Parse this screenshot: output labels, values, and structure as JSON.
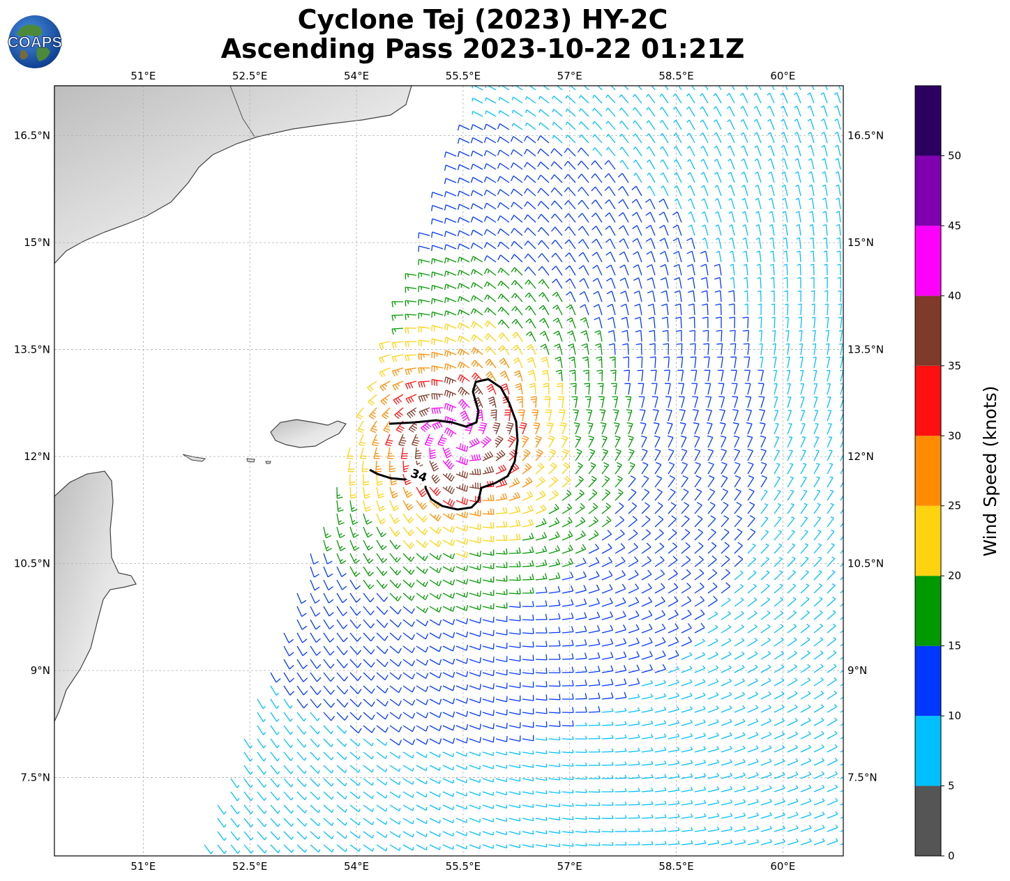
{
  "logo": {
    "text": "COAPS"
  },
  "title": {
    "line1": "Cyclone Tej (2023) HY-2C",
    "line2": "Ascending Pass 2023-10-22 01:21Z"
  },
  "map": {
    "lon_range": [
      49.75,
      60.85
    ],
    "lat_range": [
      6.4,
      17.2
    ],
    "lon_ticks": [
      {
        "value": 51.0,
        "label": "51°E"
      },
      {
        "value": 52.5,
        "label": "52.5°E"
      },
      {
        "value": 54.0,
        "label": "54°E"
      },
      {
        "value": 55.5,
        "label": "55.5°E"
      },
      {
        "value": 57.0,
        "label": "57°E"
      },
      {
        "value": 58.5,
        "label": "58.5°E"
      },
      {
        "value": 60.0,
        "label": "60°E"
      }
    ],
    "lat_ticks": [
      {
        "value": 16.5,
        "label": "16.5°N"
      },
      {
        "value": 15.0,
        "label": "15°N"
      },
      {
        "value": 13.5,
        "label": "13.5°N"
      },
      {
        "value": 12.0,
        "label": "12°N"
      },
      {
        "value": 10.5,
        "label": "10.5°N"
      },
      {
        "value": 9.0,
        "label": "9°N"
      },
      {
        "value": 7.5,
        "label": "7.5°N"
      }
    ],
    "gridlines": true,
    "land_color": "#d9d9d9",
    "coast_color": "#404040",
    "contour_label": "34",
    "storm_center": {
      "lon": 55.4,
      "lat": 12.3
    }
  },
  "colorbar": {
    "label": "Wind Speed (knots)",
    "ticks": [
      "0",
      "5",
      "10",
      "15",
      "20",
      "25",
      "30",
      "35",
      "40",
      "45",
      "50"
    ],
    "bins": [
      {
        "from": 0,
        "to": 5,
        "color": "#555555"
      },
      {
        "from": 5,
        "to": 10,
        "color": "#00bfff"
      },
      {
        "from": 10,
        "to": 15,
        "color": "#0038ff"
      },
      {
        "from": 15,
        "to": 20,
        "color": "#009900"
      },
      {
        "from": 20,
        "to": 25,
        "color": "#ffd30f"
      },
      {
        "from": 25,
        "to": 30,
        "color": "#ff8c00"
      },
      {
        "from": 30,
        "to": 35,
        "color": "#ff1010"
      },
      {
        "from": 35,
        "to": 40,
        "color": "#7f3a2a"
      },
      {
        "from": 40,
        "to": 45,
        "color": "#ff00ff"
      },
      {
        "from": 45,
        "to": 50,
        "color": "#8000b0"
      },
      {
        "from": 50,
        "to": 55,
        "color": "#2a0060"
      }
    ]
  }
}
